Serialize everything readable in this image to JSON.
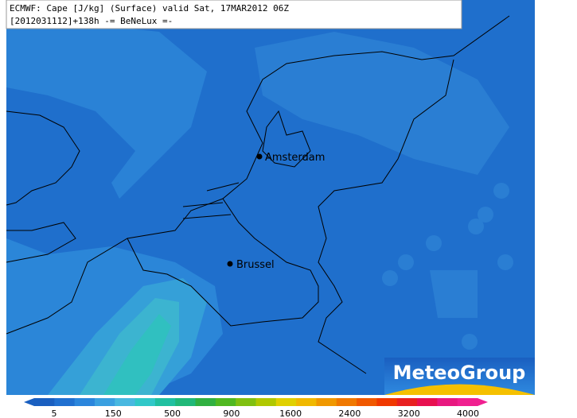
{
  "header": {
    "line1": "ECMWF: Cape [J/kg] (Surface) valid Sat, 17MAR2012 06Z",
    "line2": "[2012031112]+138h -= BeNeLux =-"
  },
  "cities": [
    {
      "label": "Amsterdam"
    },
    {
      "label": "Brussel"
    }
  ],
  "logo": "MeteoGroup",
  "colorbar": {
    "colors": [
      "#1a5fc0",
      "#2070d0",
      "#2b86dc",
      "#3aa0e0",
      "#48b8e0",
      "#30c8c8",
      "#20c0a0",
      "#20b878",
      "#30b040",
      "#50b820",
      "#80c010",
      "#b0c800",
      "#e0d000",
      "#f0b800",
      "#f09800",
      "#f07800",
      "#f05800",
      "#f03800",
      "#e82020",
      "#e81050",
      "#e81880",
      "#f02090"
    ],
    "ticks": [
      5,
      150,
      500,
      900,
      1600,
      2400,
      3200,
      4000
    ]
  }
}
